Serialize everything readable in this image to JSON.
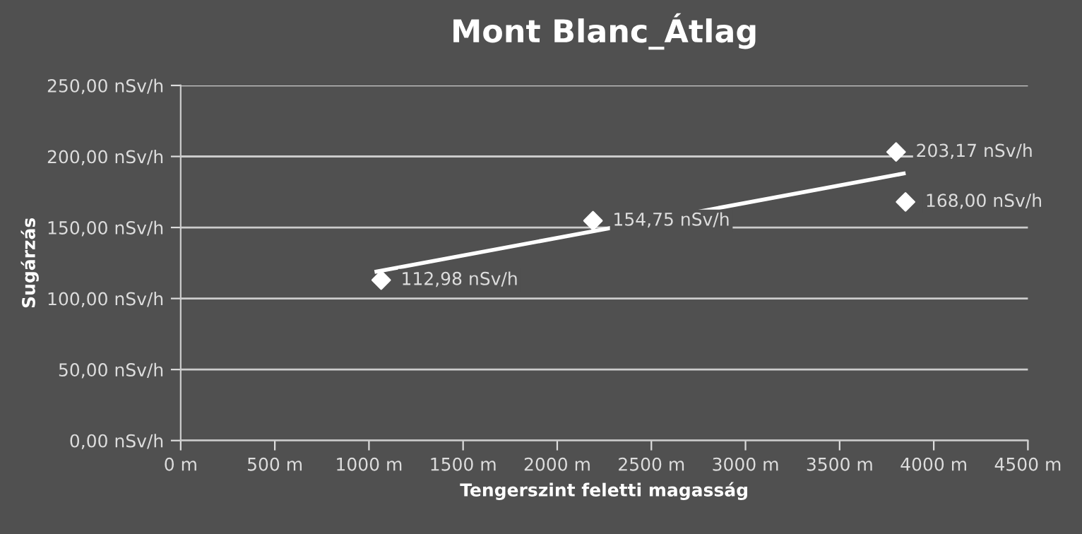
{
  "chart_data": {
    "type": "scatter",
    "title": "Mont Blanc_Átlag",
    "xlabel": "Tengerszint feletti magasság",
    "ylabel": "Sugárzás",
    "series": [
      {
        "color": "#ffffff",
        "marker": "diamond",
        "x": [
          1065,
          2190,
          3800,
          3850
        ],
        "values": [
          112.98,
          154.75,
          203.17,
          168.0
        ],
        "value_labels": [
          "112,98 nSv/h",
          "154,75 nSv/h",
          "203,17 nSv/h",
          "168,00 nSv/h"
        ]
      },
      {
        "type": "line",
        "color": "#ffffff",
        "marker": "none",
        "x": [
          1040,
          3840
        ],
        "values": [
          119,
          188
        ]
      }
    ],
    "xlim": [
      0,
      4500
    ],
    "ylim": [
      0,
      250
    ],
    "xticks": [
      {
        "value": 0,
        "label": "0 m"
      },
      {
        "value": 500,
        "label": "500 m"
      },
      {
        "value": 1000,
        "label": "1000 m"
      },
      {
        "value": 1500,
        "label": "1500 m"
      },
      {
        "value": 2000,
        "label": "2000 m"
      },
      {
        "value": 2500,
        "label": "2500 m"
      },
      {
        "value": 3000,
        "label": "3000 m"
      },
      {
        "value": 3500,
        "label": "3500 m"
      },
      {
        "value": 4000,
        "label": "4000 m"
      },
      {
        "value": 4500,
        "label": "4500 m"
      }
    ],
    "yticks": [
      {
        "value": 0,
        "label": "0,00 nSv/h"
      },
      {
        "value": 50,
        "label": "50,00 nSv/h"
      },
      {
        "value": 100,
        "label": "100,00 nSv/h"
      },
      {
        "value": 150,
        "label": "150,00 nSv/h"
      },
      {
        "value": 200,
        "label": "200,00 nSv/h"
      },
      {
        "value": 250,
        "label": "250,00 nSv/h"
      }
    ],
    "grid": "y",
    "legend": false
  }
}
